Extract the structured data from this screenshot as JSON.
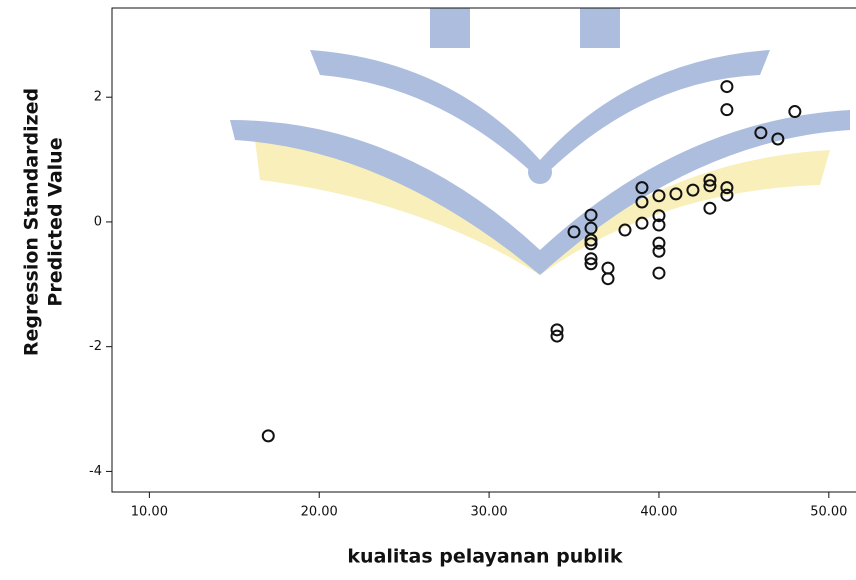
{
  "chart_data": {
    "type": "scatter",
    "x_label": "kualitas pelayanan publik",
    "y_label": [
      "Regression Standardized",
      "Predicted Value"
    ],
    "x": [
      17,
      34,
      34,
      35,
      36,
      36,
      36,
      36,
      36,
      36,
      37,
      37,
      38,
      39,
      39,
      39,
      40,
      40,
      40,
      40,
      40,
      40,
      41,
      42,
      43,
      43,
      43,
      44,
      44,
      44,
      44,
      46,
      47,
      48
    ],
    "values": [
      -3.43,
      -1.73,
      -1.83,
      -0.16,
      0.11,
      -0.1,
      -0.29,
      -0.35,
      -0.59,
      -0.67,
      -0.74,
      -0.91,
      -0.13,
      0.55,
      0.32,
      -0.02,
      0.42,
      0.1,
      -0.05,
      -0.34,
      -0.47,
      -0.82,
      0.45,
      0.51,
      0.67,
      0.58,
      0.22,
      2.17,
      1.8,
      0.55,
      0.43,
      1.43,
      1.33,
      1.77
    ],
    "color": "#111111",
    "xlim": [
      7.8,
      51.6
    ],
    "ylim": [
      -4.33,
      3.43
    ],
    "xticks": [
      {
        "value": 10,
        "label": "10.00"
      },
      {
        "value": 20,
        "label": "20.00"
      },
      {
        "value": 30,
        "label": "30.00"
      },
      {
        "value": 40,
        "label": "40.00"
      },
      {
        "value": 50,
        "label": "50.00"
      }
    ],
    "yticks": [
      2,
      0,
      -2,
      -4
    ]
  }
}
